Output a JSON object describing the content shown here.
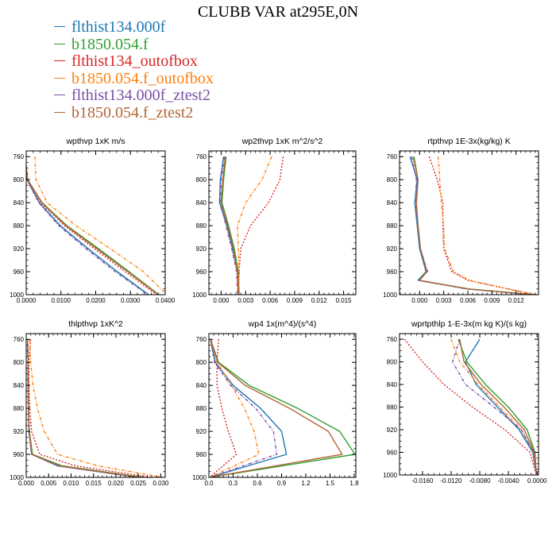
{
  "title": "CLUBB VAR at295E,0N",
  "legend": [
    {
      "name": "flthist134.000f",
      "color": "#1f77b4"
    },
    {
      "name": "b1850.054.f",
      "color": "#2ca02c"
    },
    {
      "name": "flthist134_outofbox",
      "color": "#d62728"
    },
    {
      "name": "b1850.054.f_outofbox",
      "color": "#ff7f0e"
    },
    {
      "name": "flthist134.000f_ztest2",
      "color": "#7b4fa6"
    },
    {
      "name": "b1850.054.f_ztest2",
      "color": "#b5653a"
    }
  ],
  "chart_data": [
    {
      "type": "line",
      "title": "wpthvp   1xK m/s",
      "xlim": [
        0,
        0.04
      ],
      "xticks": [
        "0.0000",
        "0.0100",
        "0.0200",
        "0.0300",
        "0.0400"
      ],
      "xtick_values": [
        0,
        0.01,
        0.02,
        0.03,
        0.04
      ],
      "ylim": [
        1000,
        750
      ],
      "yticks": [
        760,
        800,
        840,
        880,
        920,
        960,
        1000
      ],
      "y": [
        760,
        800,
        840,
        880,
        920,
        960,
        1000
      ],
      "series": [
        {
          "name": "flthist134.000f",
          "values": [
            -0.0004,
            0.0002,
            0.0038,
            0.0098,
            0.0178,
            0.0262,
            0.0352
          ]
        },
        {
          "name": "b1850.054.f",
          "values": [
            -0.0003,
            0.0004,
            0.0046,
            0.0117,
            0.0208,
            0.0296,
            0.0382
          ]
        },
        {
          "name": "flthist134_outofbox",
          "values": [
            -0.0003,
            0.0003,
            0.0042,
            0.011,
            0.0196,
            0.0285,
            0.0375
          ]
        },
        {
          "name": "b1850.054.f_outofbox",
          "values": [
            0.0025,
            0.0028,
            0.006,
            0.0143,
            0.0242,
            0.0337,
            0.0405
          ]
        },
        {
          "name": "flthist134.000f_ztest2",
          "values": [
            -0.0004,
            0.0002,
            0.0036,
            0.0094,
            0.0172,
            0.0256,
            0.035
          ]
        },
        {
          "name": "b1850.054.f_ztest2",
          "values": [
            -0.0003,
            0.0004,
            0.0045,
            0.0114,
            0.0203,
            0.0292,
            0.038
          ]
        }
      ]
    },
    {
      "type": "line",
      "title": "wp2thvp   1xK m^2/s^2",
      "xlim": [
        -0.0015,
        0.0165
      ],
      "xticks": [
        "0.000",
        "0.003",
        "0.006",
        "0.009",
        "0.012",
        "0.015"
      ],
      "xtick_values": [
        0,
        0.003,
        0.006,
        0.009,
        0.012,
        0.015
      ],
      "ylim": [
        1000,
        750
      ],
      "yticks": [
        760,
        800,
        840,
        880,
        920,
        960,
        1000
      ],
      "y": [
        760,
        800,
        840,
        880,
        920,
        960,
        1000
      ],
      "series": [
        {
          "name": "flthist134.000f",
          "values": [
            0.0003,
            -0.0001,
            -0.0002,
            0.0007,
            0.0014,
            0.002,
            0.0021
          ]
        },
        {
          "name": "b1850.054.f",
          "values": [
            0.0006,
            0.0003,
            0.0001,
            0.0009,
            0.0016,
            0.0021,
            0.0022
          ]
        },
        {
          "name": "flthist134_outofbox",
          "values": [
            0.0076,
            0.0072,
            0.0058,
            0.0036,
            0.0024,
            0.0022,
            0.0021
          ]
        },
        {
          "name": "b1850.054.f_outofbox",
          "values": [
            0.0062,
            0.005,
            0.003,
            0.002,
            0.0021,
            0.0022,
            0.0021
          ]
        },
        {
          "name": "flthist134.000f_ztest2",
          "values": [
            0.0004,
            0.0,
            -0.0001,
            0.0006,
            0.0013,
            0.0019,
            0.002
          ]
        },
        {
          "name": "b1850.054.f_ztest2",
          "values": [
            0.0005,
            0.0002,
            0.0,
            0.0008,
            0.0015,
            0.002,
            0.0021
          ]
        }
      ]
    },
    {
      "type": "line",
      "title": "rtpthvp   1E-3x(kg/kg) K",
      "xlim": [
        -0.0025,
        0.0148
      ],
      "xticks": [
        "0.000",
        "0.003",
        "0.006",
        "0.009",
        "0.012"
      ],
      "xtick_values": [
        0,
        0.003,
        0.006,
        0.009,
        0.012
      ],
      "ylim": [
        1000,
        750
      ],
      "yticks": [
        760,
        800,
        840,
        880,
        920,
        960,
        1000
      ],
      "y": [
        760,
        800,
        840,
        880,
        920,
        960,
        975,
        990,
        1000
      ],
      "series": [
        {
          "name": "flthist134.000f",
          "values": [
            -0.0012,
            -0.0003,
            -0.0006,
            -0.0003,
            0.0,
            0.0008,
            -0.0002,
            0.006,
            0.014
          ]
        },
        {
          "name": "b1850.054.f",
          "values": [
            -0.0007,
            -0.0002,
            -0.0004,
            -0.0002,
            0.0001,
            0.0009,
            -0.0001,
            0.0062,
            0.0142
          ]
        },
        {
          "name": "flthist134_outofbox",
          "values": [
            0.0012,
            0.0022,
            0.0029,
            0.0029,
            0.003,
            0.004,
            0.006,
            0.011,
            0.0145
          ]
        },
        {
          "name": "b1850.054.f_outofbox",
          "values": [
            0.0023,
            0.0025,
            0.0027,
            0.003,
            0.0031,
            0.0042,
            0.0062,
            0.011,
            0.0145
          ]
        },
        {
          "name": "flthist134.000f_ztest2",
          "values": [
            -0.001,
            -0.0004,
            -0.0005,
            -0.0002,
            0.0001,
            0.001,
            -0.0001,
            0.0058,
            0.0138
          ]
        },
        {
          "name": "b1850.054.f_ztest2",
          "values": [
            -0.0008,
            -0.0002,
            -0.0004,
            -0.0002,
            0.0001,
            0.0009,
            0.0,
            0.006,
            0.014
          ]
        }
      ]
    },
    {
      "type": "line",
      "title": "thlpthvp   1xK^2",
      "xlim": [
        0,
        0.031
      ],
      "xticks": [
        "0.000",
        "0.005",
        "0.010",
        "0.015",
        "0.020",
        "0.025",
        "0.030"
      ],
      "xtick_values": [
        0,
        0.005,
        0.01,
        0.015,
        0.02,
        0.025,
        0.03
      ],
      "ylim": [
        1000,
        750
      ],
      "yticks": [
        760,
        800,
        840,
        880,
        920,
        960,
        1000
      ],
      "y": [
        760,
        800,
        840,
        880,
        920,
        960,
        980,
        1000
      ],
      "series": [
        {
          "name": "flthist134.000f",
          "values": [
            0.0003,
            0.0004,
            0.0004,
            0.0005,
            0.0006,
            0.0012,
            0.007,
            0.025
          ]
        },
        {
          "name": "b1850.054.f",
          "values": [
            0.0003,
            0.0004,
            0.0005,
            0.0005,
            0.0007,
            0.0014,
            0.008,
            0.026
          ]
        },
        {
          "name": "flthist134_outofbox",
          "values": [
            0.001,
            0.0006,
            0.0006,
            0.0008,
            0.0012,
            0.003,
            0.011,
            0.028
          ]
        },
        {
          "name": "b1850.054.f_outofbox",
          "values": [
            0.0008,
            0.001,
            0.0015,
            0.0025,
            0.004,
            0.007,
            0.016,
            0.0305
          ]
        },
        {
          "name": "flthist134.000f_ztest2",
          "values": [
            0.0003,
            0.0004,
            0.0004,
            0.0005,
            0.0006,
            0.0012,
            0.007,
            0.025
          ]
        },
        {
          "name": "b1850.054.f_ztest2",
          "values": [
            0.0003,
            0.0004,
            0.0005,
            0.0005,
            0.0007,
            0.0013,
            0.0075,
            0.0255
          ]
        }
      ]
    },
    {
      "type": "line",
      "title": "wp4   1x(m^4)/(s^4)",
      "xlim": [
        0,
        1.82
      ],
      "xticks": [
        "0.0",
        "0.3",
        "0.6",
        "0.9",
        "1.2",
        "1.5",
        "1.8"
      ],
      "xtick_values": [
        0,
        0.3,
        0.6,
        0.9,
        1.2,
        1.5,
        1.8
      ],
      "ylim": [
        1000,
        750
      ],
      "yticks": [
        760,
        800,
        840,
        880,
        920,
        960,
        1000
      ],
      "y": [
        760,
        800,
        840,
        880,
        920,
        960,
        1000
      ],
      "series": [
        {
          "name": "flthist134.000f",
          "values": [
            0.02,
            0.08,
            0.3,
            0.64,
            0.9,
            0.96,
            0.01
          ]
        },
        {
          "name": "b1850.054.f",
          "values": [
            0.02,
            0.12,
            0.5,
            1.1,
            1.62,
            1.81,
            0.01
          ]
        },
        {
          "name": "flthist134_outofbox",
          "values": [
            0.12,
            0.1,
            0.1,
            0.16,
            0.24,
            0.34,
            0.01
          ]
        },
        {
          "name": "b1850.054.f_outofbox",
          "values": [
            0.03,
            0.1,
            0.28,
            0.44,
            0.56,
            0.62,
            0.01
          ]
        },
        {
          "name": "flthist134.000f_ztest2",
          "values": [
            0.02,
            0.07,
            0.27,
            0.58,
            0.8,
            0.84,
            0.01
          ]
        },
        {
          "name": "b1850.054.f_ztest2",
          "values": [
            0.02,
            0.11,
            0.45,
            1.0,
            1.48,
            1.65,
            0.01
          ]
        }
      ]
    },
    {
      "type": "line",
      "title": "wprtpthlp   1-E-3x(m kg K)/(s kg)",
      "xlim": [
        -0.0192,
        0.0002
      ],
      "xticks": [
        "-0.0160",
        "-0.0120",
        "-0.0080",
        "-0.0040",
        "0.0000"
      ],
      "xtick_values": [
        -0.016,
        -0.012,
        -0.008,
        -0.004,
        0
      ],
      "ylim": [
        1000,
        750
      ],
      "yticks": [
        760,
        800,
        840,
        880,
        920,
        960,
        1000
      ],
      "y": [
        760,
        800,
        840,
        880,
        920,
        960,
        1000
      ],
      "series": [
        {
          "name": "flthist134.000f",
          "values": [
            -0.008,
            -0.01,
            -0.0085,
            -0.0055,
            -0.0025,
            -0.0006,
            -0.0001
          ]
        },
        {
          "name": "b1850.054.f",
          "values": [
            -0.011,
            -0.0098,
            -0.0072,
            -0.004,
            -0.0014,
            -0.0003,
            -0.0001
          ]
        },
        {
          "name": "flthist134_outofbox",
          "values": [
            -0.0185,
            -0.016,
            -0.013,
            -0.009,
            -0.0045,
            -0.001,
            -0.0001
          ]
        },
        {
          "name": "b1850.054.f_outofbox",
          "values": [
            -0.012,
            -0.0108,
            -0.0082,
            -0.0052,
            -0.0022,
            -0.0005,
            -0.0001
          ]
        },
        {
          "name": "flthist134.000f_ztest2",
          "values": [
            -0.0108,
            -0.0118,
            -0.01,
            -0.006,
            -0.0022,
            -0.0005,
            -0.0001
          ]
        },
        {
          "name": "b1850.054.f_ztest2",
          "values": [
            -0.0108,
            -0.0102,
            -0.0078,
            -0.0046,
            -0.0018,
            -0.0004,
            -0.0001
          ]
        }
      ]
    }
  ]
}
